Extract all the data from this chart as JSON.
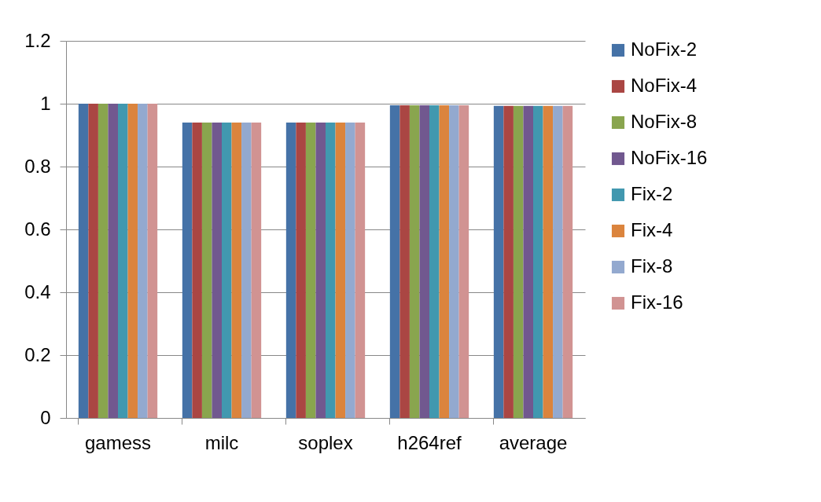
{
  "chart_data": {
    "type": "bar",
    "categories": [
      "gamess",
      "milc",
      "soplex",
      "h264ref",
      "average"
    ],
    "series": [
      {
        "name": "NoFix-2",
        "color": "#4572a7",
        "values": [
          1.0,
          0.94,
          0.94,
          0.995,
          0.993
        ]
      },
      {
        "name": "NoFix-4",
        "color": "#aa4643",
        "values": [
          1.0,
          0.94,
          0.94,
          0.995,
          0.993
        ]
      },
      {
        "name": "NoFix-8",
        "color": "#89a54e",
        "values": [
          1.0,
          0.94,
          0.94,
          0.995,
          0.993
        ]
      },
      {
        "name": "NoFix-16",
        "color": "#71588f",
        "values": [
          1.0,
          0.94,
          0.94,
          0.995,
          0.993
        ]
      },
      {
        "name": "Fix-2",
        "color": "#4198af",
        "values": [
          1.0,
          0.94,
          0.94,
          0.995,
          0.993
        ]
      },
      {
        "name": "Fix-4",
        "color": "#db843d",
        "values": [
          1.0,
          0.94,
          0.94,
          0.995,
          0.993
        ]
      },
      {
        "name": "Fix-8",
        "color": "#93a9cf",
        "values": [
          1.0,
          0.94,
          0.94,
          0.995,
          0.993
        ]
      },
      {
        "name": "Fix-16",
        "color": "#d19392",
        "values": [
          1.0,
          0.94,
          0.94,
          0.995,
          0.993
        ]
      }
    ],
    "ylim": [
      0,
      1.2
    ],
    "yticks": [
      0,
      0.2,
      0.4,
      0.6,
      0.8,
      1,
      1.2
    ],
    "grid": "y",
    "legend": "right"
  }
}
